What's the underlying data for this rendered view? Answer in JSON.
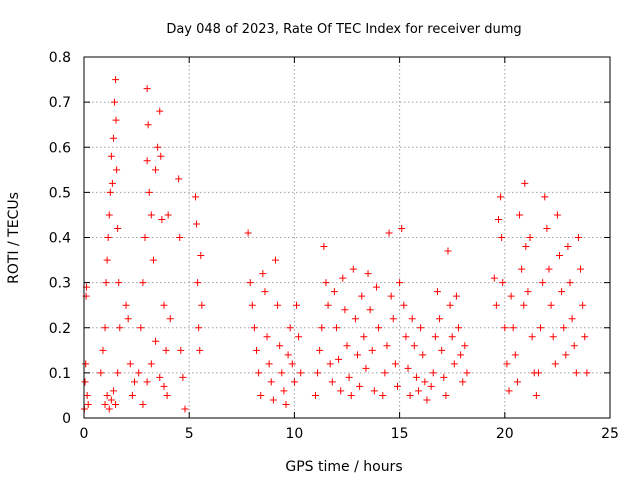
{
  "chart_data": {
    "type": "scatter",
    "title": "Day 048 of 2023, Rate Of TEC Index for receiver dumg",
    "xlabel": "GPS time / hours",
    "ylabel": "ROTI / TECUs",
    "xlim": [
      0,
      25
    ],
    "ylim": [
      0,
      0.8
    ],
    "xticks": [
      0,
      5,
      10,
      15,
      20,
      25
    ],
    "yticks": [
      0,
      0.1,
      0.2,
      0.3,
      0.4,
      0.5,
      0.6,
      0.7,
      0.8
    ],
    "xtick_labels": [
      "0",
      "5",
      "10",
      "15",
      "20",
      "25"
    ],
    "ytick_labels": [
      "0",
      "0.1",
      "0.2",
      "0.3",
      "0.4",
      "0.5",
      "0.6",
      "0.7",
      "0.8"
    ],
    "grid": true,
    "marker": "+",
    "color": "#ff0000",
    "series": [
      {
        "points": [
          [
            0.02,
            0.02
          ],
          [
            0.05,
            0.08
          ],
          [
            0.08,
            0.12
          ],
          [
            0.1,
            0.27
          ],
          [
            0.12,
            0.29
          ],
          [
            0.15,
            0.05
          ],
          [
            0.2,
            0.03
          ],
          [
            0.8,
            0.1
          ],
          [
            0.9,
            0.15
          ],
          [
            1.0,
            0.2
          ],
          [
            1.05,
            0.3
          ],
          [
            1.1,
            0.35
          ],
          [
            1.15,
            0.4
          ],
          [
            1.2,
            0.45
          ],
          [
            1.25,
            0.5
          ],
          [
            1.3,
            0.58
          ],
          [
            1.35,
            0.52
          ],
          [
            1.4,
            0.62
          ],
          [
            1.45,
            0.7
          ],
          [
            1.5,
            0.75
          ],
          [
            1.52,
            0.66
          ],
          [
            1.55,
            0.55
          ],
          [
            1.6,
            0.42
          ],
          [
            1.65,
            0.3
          ],
          [
            1.0,
            0.03
          ],
          [
            1.1,
            0.05
          ],
          [
            1.2,
            0.02
          ],
          [
            1.3,
            0.04
          ],
          [
            1.4,
            0.06
          ],
          [
            1.5,
            0.03
          ],
          [
            1.6,
            0.1
          ],
          [
            1.7,
            0.2
          ],
          [
            2.0,
            0.25
          ],
          [
            2.1,
            0.22
          ],
          [
            2.2,
            0.12
          ],
          [
            2.3,
            0.05
          ],
          [
            2.4,
            0.08
          ],
          [
            2.6,
            0.1
          ],
          [
            2.7,
            0.2
          ],
          [
            2.8,
            0.3
          ],
          [
            2.9,
            0.4
          ],
          [
            3.0,
            0.57
          ],
          [
            3.0,
            0.73
          ],
          [
            3.05,
            0.65
          ],
          [
            3.1,
            0.5
          ],
          [
            3.2,
            0.45
          ],
          [
            3.3,
            0.35
          ],
          [
            3.4,
            0.55
          ],
          [
            3.5,
            0.6
          ],
          [
            3.6,
            0.68
          ],
          [
            3.65,
            0.58
          ],
          [
            3.7,
            0.44
          ],
          [
            3.8,
            0.25
          ],
          [
            3.9,
            0.15
          ],
          [
            3.95,
            0.05
          ],
          [
            2.8,
            0.03
          ],
          [
            3.0,
            0.08
          ],
          [
            3.2,
            0.12
          ],
          [
            3.4,
            0.17
          ],
          [
            3.6,
            0.09
          ],
          [
            3.8,
            0.07
          ],
          [
            4.0,
            0.45
          ],
          [
            4.1,
            0.22
          ],
          [
            4.5,
            0.53
          ],
          [
            4.55,
            0.4
          ],
          [
            4.6,
            0.15
          ],
          [
            4.7,
            0.09
          ],
          [
            4.8,
            0.02
          ],
          [
            5.3,
            0.49
          ],
          [
            5.35,
            0.43
          ],
          [
            5.4,
            0.3
          ],
          [
            5.45,
            0.2
          ],
          [
            5.5,
            0.15
          ],
          [
            5.55,
            0.36
          ],
          [
            5.6,
            0.25
          ],
          [
            7.8,
            0.41
          ],
          [
            7.9,
            0.3
          ],
          [
            8.0,
            0.25
          ],
          [
            8.1,
            0.2
          ],
          [
            8.2,
            0.15
          ],
          [
            8.3,
            0.1
          ],
          [
            8.4,
            0.05
          ],
          [
            8.5,
            0.32
          ],
          [
            8.6,
            0.28
          ],
          [
            8.7,
            0.18
          ],
          [
            8.8,
            0.12
          ],
          [
            8.9,
            0.08
          ],
          [
            9.0,
            0.04
          ],
          [
            9.1,
            0.35
          ],
          [
            9.2,
            0.25
          ],
          [
            9.3,
            0.16
          ],
          [
            9.4,
            0.1
          ],
          [
            9.5,
            0.06
          ],
          [
            9.6,
            0.03
          ],
          [
            9.7,
            0.14
          ],
          [
            9.8,
            0.2
          ],
          [
            9.9,
            0.12
          ],
          [
            10.0,
            0.08
          ],
          [
            10.1,
            0.25
          ],
          [
            10.2,
            0.18
          ],
          [
            10.3,
            0.1
          ],
          [
            11.0,
            0.05
          ],
          [
            11.1,
            0.1
          ],
          [
            11.2,
            0.15
          ],
          [
            11.3,
            0.2
          ],
          [
            11.4,
            0.38
          ],
          [
            11.5,
            0.3
          ],
          [
            11.6,
            0.25
          ],
          [
            11.7,
            0.12
          ],
          [
            11.8,
            0.08
          ],
          [
            11.9,
            0.28
          ],
          [
            12.0,
            0.2
          ],
          [
            12.1,
            0.13
          ],
          [
            12.2,
            0.06
          ],
          [
            12.3,
            0.31
          ],
          [
            12.4,
            0.24
          ],
          [
            12.5,
            0.16
          ],
          [
            12.6,
            0.09
          ],
          [
            12.7,
            0.05
          ],
          [
            12.8,
            0.33
          ],
          [
            12.9,
            0.22
          ],
          [
            13.0,
            0.14
          ],
          [
            13.1,
            0.07
          ],
          [
            13.2,
            0.27
          ],
          [
            13.3,
            0.18
          ],
          [
            13.4,
            0.11
          ],
          [
            13.5,
            0.32
          ],
          [
            13.6,
            0.24
          ],
          [
            13.7,
            0.15
          ],
          [
            13.8,
            0.06
          ],
          [
            13.9,
            0.29
          ],
          [
            14.0,
            0.2
          ],
          [
            14.2,
            0.05
          ],
          [
            14.3,
            0.1
          ],
          [
            14.4,
            0.16
          ],
          [
            14.5,
            0.41
          ],
          [
            14.6,
            0.27
          ],
          [
            14.7,
            0.22
          ],
          [
            14.8,
            0.12
          ],
          [
            14.9,
            0.07
          ],
          [
            15.0,
            0.3
          ],
          [
            15.1,
            0.42
          ],
          [
            15.2,
            0.25
          ],
          [
            15.3,
            0.18
          ],
          [
            15.4,
            0.11
          ],
          [
            15.5,
            0.05
          ],
          [
            15.6,
            0.22
          ],
          [
            15.7,
            0.16
          ],
          [
            15.8,
            0.09
          ],
          [
            15.9,
            0.06
          ],
          [
            16.0,
            0.2
          ],
          [
            16.1,
            0.14
          ],
          [
            16.2,
            0.08
          ],
          [
            16.3,
            0.04
          ],
          [
            16.5,
            0.07
          ],
          [
            16.6,
            0.1
          ],
          [
            16.7,
            0.18
          ],
          [
            16.8,
            0.28
          ],
          [
            16.9,
            0.22
          ],
          [
            17.0,
            0.15
          ],
          [
            17.1,
            0.09
          ],
          [
            17.2,
            0.05
          ],
          [
            17.3,
            0.37
          ],
          [
            17.4,
            0.25
          ],
          [
            17.5,
            0.18
          ],
          [
            17.6,
            0.12
          ],
          [
            17.7,
            0.27
          ],
          [
            17.8,
            0.2
          ],
          [
            17.9,
            0.14
          ],
          [
            18.0,
            0.08
          ],
          [
            18.1,
            0.16
          ],
          [
            18.2,
            0.1
          ],
          [
            19.5,
            0.31
          ],
          [
            19.6,
            0.25
          ],
          [
            19.7,
            0.44
          ],
          [
            19.8,
            0.49
          ],
          [
            19.85,
            0.4
          ],
          [
            19.9,
            0.3
          ],
          [
            20.0,
            0.2
          ],
          [
            20.1,
            0.12
          ],
          [
            20.2,
            0.06
          ],
          [
            20.3,
            0.27
          ],
          [
            20.4,
            0.2
          ],
          [
            20.5,
            0.14
          ],
          [
            20.6,
            0.08
          ],
          [
            20.7,
            0.45
          ],
          [
            20.8,
            0.33
          ],
          [
            20.9,
            0.25
          ],
          [
            20.95,
            0.52
          ],
          [
            21.0,
            0.38
          ],
          [
            21.1,
            0.28
          ],
          [
            21.2,
            0.4
          ],
          [
            21.3,
            0.18
          ],
          [
            21.4,
            0.1
          ],
          [
            21.5,
            0.05
          ],
          [
            21.6,
            0.1
          ],
          [
            21.7,
            0.2
          ],
          [
            21.8,
            0.3
          ],
          [
            21.9,
            0.49
          ],
          [
            22.0,
            0.42
          ],
          [
            22.1,
            0.33
          ],
          [
            22.2,
            0.25
          ],
          [
            22.3,
            0.18
          ],
          [
            22.4,
            0.12
          ],
          [
            22.5,
            0.45
          ],
          [
            22.6,
            0.36
          ],
          [
            22.7,
            0.28
          ],
          [
            22.8,
            0.2
          ],
          [
            22.9,
            0.14
          ],
          [
            23.0,
            0.38
          ],
          [
            23.1,
            0.3
          ],
          [
            23.2,
            0.22
          ],
          [
            23.3,
            0.16
          ],
          [
            23.4,
            0.1
          ],
          [
            23.5,
            0.4
          ],
          [
            23.6,
            0.33
          ],
          [
            23.7,
            0.25
          ],
          [
            23.8,
            0.18
          ],
          [
            23.9,
            0.1
          ]
        ]
      }
    ]
  }
}
